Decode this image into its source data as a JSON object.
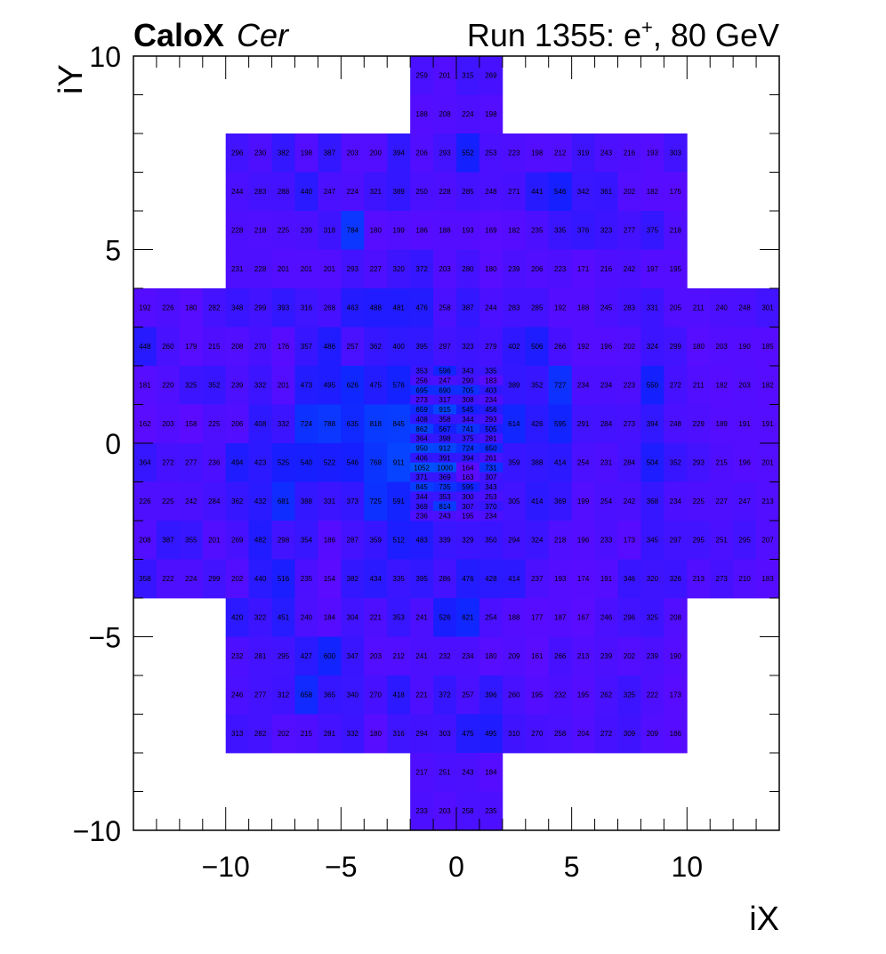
{
  "header": {
    "experiment": "CaloX",
    "channel": "Cer",
    "run_label": "Run 1355: e",
    "run_sup": "+",
    "run_energy": ", 80 GeV"
  },
  "chart_data": {
    "type": "heatmap",
    "xlabel": "iX",
    "ylabel": "iY",
    "xlim": [
      -14,
      14
    ],
    "ylim": [
      -10,
      10
    ],
    "x_ticks": [
      -10,
      -5,
      0,
      5,
      10
    ],
    "y_ticks": [
      -10,
      -5,
      0,
      5,
      10
    ],
    "x_tick_labels": [
      "−10",
      "−5",
      "0",
      "5",
      "10"
    ],
    "y_tick_labels": [
      "−10",
      "−5",
      "0",
      "5",
      "10"
    ],
    "colors": {
      "low": "#5c0bff",
      "mid": "#1420ff",
      "high": "#0052ff",
      "frame": "#000000"
    },
    "color_scale": {
      "min": 150,
      "max": 1052
    },
    "big_cells": [
      {
        "x": -2,
        "y": 8,
        "w": 4,
        "h": 2,
        "values": [
          [
            259,
            201,
            315,
            269
          ],
          [
            188,
            208,
            224,
            198
          ]
        ]
      },
      {
        "x": -10,
        "y": 4,
        "w": 8,
        "h": 4,
        "values": [
          [
            296,
            230,
            382,
            198,
            387,
            203,
            200,
            394
          ],
          [
            244,
            283,
            288,
            440,
            247,
            224,
            321,
            389
          ],
          [
            228,
            218,
            225,
            239,
            318,
            784,
            180,
            199
          ],
          [
            231,
            228,
            201,
            201,
            201,
            293,
            227,
            320
          ]
        ]
      },
      {
        "x": -2,
        "y": 4,
        "w": 4,
        "h": 4,
        "values": [
          [
            206,
            293,
            552,
            253
          ],
          [
            250,
            228,
            285,
            248
          ],
          [
            186,
            188,
            193,
            169
          ],
          [
            372,
            203,
            280,
            180
          ]
        ]
      },
      {
        "x": 2,
        "y": 4,
        "w": 8,
        "h": 4,
        "values": [
          [
            223,
            198,
            212,
            319,
            243,
            216,
            193,
            303
          ],
          [
            271,
            441,
            546,
            342,
            361,
            202,
            182,
            175
          ],
          [
            182,
            235,
            335,
            376,
            323,
            277,
            375,
            218
          ],
          [
            239,
            206,
            223,
            171,
            216,
            242,
            197,
            195
          ]
        ]
      },
      {
        "x": -14,
        "y": 0,
        "w": 4,
        "h": 4,
        "values": [
          [
            192,
            226,
            180,
            282
          ],
          [
            448,
            260,
            179,
            215
          ],
          [
            181,
            220,
            325,
            352
          ],
          [
            162,
            203,
            158,
            225
          ]
        ]
      },
      {
        "x": -10,
        "y": 0,
        "w": 8,
        "h": 4,
        "values": [
          [
            348,
            299,
            393,
            316,
            268,
            463,
            488,
            481
          ],
          [
            208,
            270,
            176,
            357,
            486,
            257,
            362,
            400
          ],
          [
            239,
            332,
            201,
            473,
            495,
            626,
            475,
            576
          ],
          [
            206,
            408,
            332,
            724,
            788,
            635,
            818,
            845
          ]
        ]
      },
      {
        "x": -2,
        "y": 2,
        "w": 4,
        "h": 2,
        "values": [
          [
            476,
            258,
            387,
            244
          ],
          [
            395,
            297,
            323,
            279
          ]
        ]
      },
      {
        "x": 2,
        "y": 0,
        "w": 8,
        "h": 4,
        "values": [
          [
            283,
            285,
            192,
            188,
            245,
            283,
            331,
            205
          ],
          [
            402,
            506,
            266,
            192,
            196,
            202,
            324,
            299
          ],
          [
            389,
            352,
            727,
            234,
            234,
            223,
            550,
            272
          ],
          [
            614,
            426,
            595,
            291,
            284,
            273,
            394,
            248
          ]
        ]
      },
      {
        "x": 10,
        "y": 0,
        "w": 4,
        "h": 4,
        "values": [
          [
            211,
            240,
            248,
            301
          ],
          [
            180,
            203,
            190,
            185
          ],
          [
            211,
            182,
            203,
            182
          ],
          [
            229,
            189,
            191,
            191
          ]
        ]
      },
      {
        "x": -14,
        "y": -4,
        "w": 4,
        "h": 4,
        "values": [
          [
            364,
            272,
            277,
            236
          ],
          [
            226,
            225,
            242,
            284
          ],
          [
            208,
            387,
            355,
            201
          ],
          [
            358,
            222,
            224,
            299
          ]
        ]
      },
      {
        "x": -10,
        "y": -4,
        "w": 8,
        "h": 4,
        "values": [
          [
            494,
            423,
            525,
            540,
            522,
            546,
            768,
            911
          ],
          [
            362,
            432,
            681,
            388,
            331,
            373,
            725,
            591
          ],
          [
            269,
            482,
            298,
            354,
            186,
            287,
            359,
            512
          ],
          [
            202,
            440,
            516,
            235,
            154,
            382,
            434,
            335
          ]
        ]
      },
      {
        "x": -2,
        "y": -4,
        "w": 4,
        "h": 2,
        "values": [
          [
            483,
            339,
            329,
            350
          ],
          [
            395,
            286,
            476,
            428
          ]
        ]
      },
      {
        "x": 2,
        "y": -4,
        "w": 8,
        "h": 4,
        "values": [
          [
            359,
            388,
            414,
            254,
            231,
            284,
            504,
            352
          ],
          [
            305,
            414,
            369,
            199,
            254,
            242,
            368,
            234
          ],
          [
            294,
            324,
            218,
            196,
            233,
            173,
            345,
            297
          ],
          [
            414,
            237,
            193,
            174,
            191,
            346,
            320,
            326
          ]
        ]
      },
      {
        "x": 10,
        "y": -4,
        "w": 4,
        "h": 4,
        "values": [
          [
            293,
            215,
            196,
            201
          ],
          [
            225,
            227,
            247,
            213
          ],
          [
            295,
            251,
            295,
            207
          ],
          [
            213,
            273,
            210,
            183
          ]
        ]
      },
      {
        "x": -10,
        "y": -8,
        "w": 8,
        "h": 4,
        "values": [
          [
            420,
            322,
            451,
            240,
            184,
            304,
            221,
            353
          ],
          [
            232,
            281,
            295,
            427,
            600,
            347,
            203,
            212
          ],
          [
            246,
            277,
            312,
            658,
            365,
            340,
            270,
            418
          ],
          [
            313,
            282,
            202,
            215,
            281,
            332,
            180,
            316
          ]
        ]
      },
      {
        "x": -2,
        "y": -8,
        "w": 4,
        "h": 4,
        "values": [
          [
            241,
            526,
            621,
            254
          ],
          [
            241,
            232,
            234,
            180
          ],
          [
            221,
            372,
            257,
            396
          ],
          [
            294,
            303,
            475,
            495
          ]
        ]
      },
      {
        "x": 2,
        "y": -8,
        "w": 8,
        "h": 4,
        "values": [
          [
            188,
            177,
            187,
            167,
            246,
            296,
            325,
            208
          ],
          [
            209,
            161,
            266,
            213,
            239,
            202,
            239,
            190
          ],
          [
            260,
            195,
            232,
            195,
            262,
            325,
            222,
            173
          ],
          [
            310,
            270,
            258,
            204,
            272,
            309,
            209,
            186
          ]
        ]
      },
      {
        "x": -2,
        "y": -10,
        "w": 4,
        "h": 2,
        "values": [
          [
            217,
            251,
            243,
            184
          ],
          [
            233,
            203,
            258,
            235
          ]
        ]
      }
    ],
    "fine_cells": {
      "x": -2,
      "y": -2,
      "w": 4,
      "h": 4,
      "rows": [
        [
          353,
          596,
          343,
          335
        ],
        [
          256,
          247,
          290,
          183
        ],
        [
          695,
          690,
          705,
          403
        ],
        [
          273,
          317,
          308,
          234
        ],
        [
          659,
          915,
          545,
          456
        ],
        [
          408,
          358,
          344,
          293
        ],
        [
          862,
          567,
          741,
          505
        ],
        [
          364,
          398,
          375,
          281
        ],
        [
          950,
          912,
          724,
          650
        ],
        [
          406,
          391,
          394,
          261
        ],
        [
          1052,
          1000,
          164,
          731
        ],
        [
          371,
          369,
          163,
          307
        ],
        [
          845,
          735,
          595,
          343
        ],
        [
          344,
          353,
          300,
          253
        ],
        [
          369,
          814,
          307,
          370
        ],
        [
          236,
          243,
          195,
          234
        ]
      ]
    }
  }
}
